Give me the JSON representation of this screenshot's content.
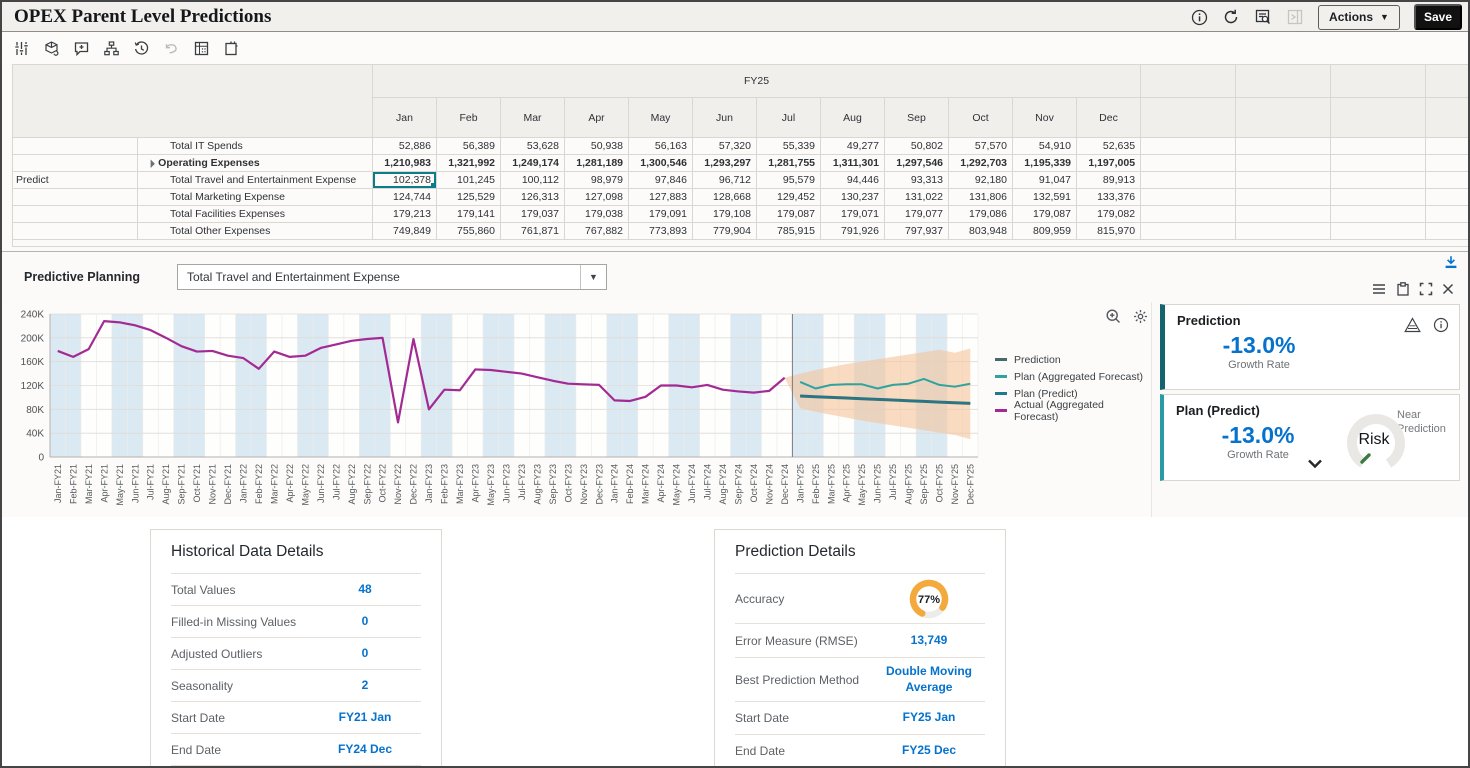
{
  "header": {
    "title": "OPEX Parent Level Predictions",
    "actions_label": "Actions",
    "save_label": "Save",
    "icons": [
      "info-icon",
      "refresh-icon",
      "report-search-icon",
      "collapse-panel-icon"
    ]
  },
  "toolbar": {
    "icons": [
      "filter-sliders-icon",
      "cube-icon",
      "add-comment-icon",
      "hierarchy-icon",
      "history-icon",
      "undo-icon",
      "grid-icon",
      "open-window-icon"
    ]
  },
  "grid": {
    "year_label": "FY25",
    "months": [
      "Jan",
      "Feb",
      "Mar",
      "Apr",
      "May",
      "Jun",
      "Jul",
      "Aug",
      "Sep",
      "Oct",
      "Nov",
      "Dec"
    ],
    "extra_column_count": 4,
    "rows": [
      {
        "left_label": "",
        "name": "Total IT Spends",
        "bold": false,
        "expanded_icon": false,
        "selected_col": null,
        "values": [
          "52,886",
          "56,389",
          "53,628",
          "50,938",
          "56,163",
          "57,320",
          "55,339",
          "49,277",
          "50,802",
          "57,570",
          "54,910",
          "52,635"
        ]
      },
      {
        "left_label": "",
        "name": "Operating Expenses",
        "bold": true,
        "expanded_icon": true,
        "selected_col": null,
        "values": [
          "1,210,983",
          "1,321,992",
          "1,249,174",
          "1,281,189",
          "1,300,546",
          "1,293,297",
          "1,281,755",
          "1,311,301",
          "1,297,546",
          "1,292,703",
          "1,195,339",
          "1,197,005"
        ]
      },
      {
        "left_label": "Predict",
        "name": "Total Travel and Entertainment Expense",
        "bold": false,
        "expanded_icon": false,
        "selected_col": 0,
        "values": [
          "102,378",
          "101,245",
          "100,112",
          "98,979",
          "97,846",
          "96,712",
          "95,579",
          "94,446",
          "93,313",
          "92,180",
          "91,047",
          "89,913"
        ]
      },
      {
        "left_label": "",
        "name": "Total Marketing Expense",
        "bold": false,
        "expanded_icon": false,
        "selected_col": null,
        "values": [
          "124,744",
          "125,529",
          "126,313",
          "127,098",
          "127,883",
          "128,668",
          "129,452",
          "130,237",
          "131,022",
          "131,806",
          "132,591",
          "133,376"
        ]
      },
      {
        "left_label": "",
        "name": "Total Facilities Expenses",
        "bold": false,
        "expanded_icon": false,
        "selected_col": null,
        "values": [
          "179,213",
          "179,141",
          "179,037",
          "179,038",
          "179,091",
          "179,108",
          "179,087",
          "179,071",
          "179,077",
          "179,086",
          "179,087",
          "179,082"
        ]
      },
      {
        "left_label": "",
        "name": "Total Other Expenses",
        "bold": false,
        "expanded_icon": false,
        "selected_col": null,
        "values": [
          "749,849",
          "755,860",
          "761,871",
          "767,882",
          "773,893",
          "779,904",
          "785,915",
          "791,926",
          "797,937",
          "803,948",
          "809,959",
          "815,970"
        ]
      }
    ]
  },
  "predictive": {
    "label": "Predictive Planning",
    "selected_measure": "Total Travel and Entertainment Expense",
    "panel_icons": [
      "dock-bottom-icon",
      "menu-icon",
      "paste-icon",
      "fullscreen-icon",
      "close-icon"
    ],
    "chart_tools": [
      "zoom-in-icon",
      "gear-icon"
    ]
  },
  "chart_data": {
    "type": "line",
    "title": "",
    "xlabel": "",
    "ylabel": "",
    "ylim_k": [
      0,
      240
    ],
    "ytick_labels": [
      "0",
      "40K",
      "80K",
      "120K",
      "160K",
      "200K",
      "240K"
    ],
    "grid": true,
    "legend_position": "right",
    "x": [
      "Jan-FY21",
      "Feb-FY21",
      "Mar-FY21",
      "Apr-FY21",
      "May-FY21",
      "Jun-FY21",
      "Jul-FY21",
      "Aug-FY21",
      "Sep-FY21",
      "Oct-FY21",
      "Nov-FY21",
      "Dec-FY21",
      "Jan-FY22",
      "Feb-FY22",
      "Mar-FY22",
      "Apr-FY22",
      "May-FY22",
      "Jun-FY22",
      "Jul-FY22",
      "Aug-FY22",
      "Sep-FY22",
      "Oct-FY22",
      "Nov-FY22",
      "Dec-FY22",
      "Jan-FY23",
      "Feb-FY23",
      "Mar-FY23",
      "Apr-FY23",
      "May-FY23",
      "Jun-FY23",
      "Jul-FY23",
      "Aug-FY23",
      "Sep-FY23",
      "Oct-FY23",
      "Nov-FY23",
      "Dec-FY23",
      "Jan-FY24",
      "Feb-FY24",
      "Mar-FY24",
      "Apr-FY24",
      "May-FY24",
      "Jun-FY24",
      "Jul-FY24",
      "Aug-FY24",
      "Sep-FY24",
      "Oct-FY24",
      "Nov-FY24",
      "Dec-FY24",
      "Jan-FY25",
      "Feb-FY25",
      "Mar-FY25",
      "Apr-FY25",
      "May-FY25",
      "Jun-FY25",
      "Jul-FY25",
      "Aug-FY25",
      "Sep-FY25",
      "Oct-FY25",
      "Nov-FY25",
      "Dec-FY25"
    ],
    "separator_index": 48,
    "series": [
      {
        "name": "Prediction",
        "color": "#45696d",
        "width": 3,
        "start_index": 48,
        "values_k": [
          102.4,
          101.2,
          100.1,
          99,
          97.8,
          96.7,
          95.6,
          94.4,
          93.3,
          92.2,
          91,
          89.9
        ]
      },
      {
        "name": "Plan (Aggregated Forecast)",
        "color": "#2fa3a0",
        "width": 2,
        "start_index": 48,
        "values_k": [
          126,
          115,
          121,
          122,
          122,
          115,
          121,
          123,
          131,
          121,
          118,
          123
        ]
      },
      {
        "name": "Plan (Predict)",
        "color": "#1f7a8c",
        "width": 1.8,
        "start_index": 48,
        "values_k": [
          102.4,
          101.2,
          100.1,
          99,
          97.8,
          96.7,
          95.6,
          94.4,
          93.3,
          92.2,
          91,
          89.9
        ]
      },
      {
        "name": "Actual (Aggregated Forecast)",
        "color": "#a32a93",
        "width": 2.2,
        "start_index": 0,
        "values_k": [
          178,
          168,
          181,
          228,
          226,
          221,
          213,
          200,
          186,
          177,
          178,
          170,
          166,
          148,
          177,
          168,
          170,
          183,
          189,
          195,
          198,
          200,
          58,
          198,
          80,
          113,
          112,
          147,
          146,
          143,
          140,
          134,
          128,
          123,
          122,
          121,
          95,
          94,
          101,
          120,
          120,
          117,
          121,
          113,
          110,
          108,
          111,
          133
        ]
      }
    ],
    "confidence_band": {
      "color": "#f3c59c",
      "opacity": 0.62,
      "apex_index": 47,
      "apex_k": 133,
      "upper_k": [
        140,
        146,
        151,
        156,
        160,
        164,
        168,
        172,
        176,
        180,
        175,
        182
      ],
      "lower_k": [
        82,
        76,
        71,
        66,
        61,
        57,
        53,
        49,
        45,
        41,
        37,
        30
      ]
    },
    "shaded_band_color": "#dbe9f3"
  },
  "prediction_card": {
    "title": "Prediction",
    "value": "-13.0%",
    "caption": "Growth Rate",
    "icons": [
      "warning-icon",
      "info-icon"
    ]
  },
  "plan_predict_card": {
    "title": "Plan (Predict)",
    "value": "-13.0%",
    "caption": "Growth Rate",
    "gauge_label": "Risk",
    "gauge_note": "Near Prediction"
  },
  "historical_details": {
    "title": "Historical Data Details",
    "rows": [
      {
        "label": "Total Values",
        "value": "48"
      },
      {
        "label": "Filled-in Missing Values",
        "value": "0"
      },
      {
        "label": "Adjusted Outliers",
        "value": "0"
      },
      {
        "label": "Seasonality",
        "value": "2"
      },
      {
        "label": "Start Date",
        "value": "FY21 Jan"
      },
      {
        "label": "End Date",
        "value": "FY24 Dec"
      }
    ]
  },
  "prediction_details": {
    "title": "Prediction Details",
    "accuracy_color": "#f3a93c",
    "rows": [
      {
        "label": "Accuracy",
        "value": "77%",
        "gauge": true
      },
      {
        "label": "Error Measure (RMSE)",
        "value": "13,749"
      },
      {
        "label": "Best Prediction Method",
        "value": "Double Moving Average"
      },
      {
        "label": "Start Date",
        "value": "FY25 Jan"
      },
      {
        "label": "End Date",
        "value": "FY25 Dec"
      }
    ]
  }
}
